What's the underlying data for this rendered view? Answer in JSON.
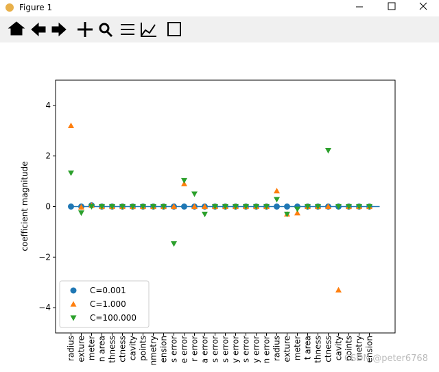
{
  "window": {
    "title": "Figure 1",
    "watermark": "CSDN @peter6768"
  },
  "chart_data": {
    "type": "scatter",
    "ylabel": "coefficient magnitude",
    "categories": [
      "radius",
      "exture",
      "meter",
      "n area",
      "thness",
      "ctness",
      "cavity",
      "points",
      "nmetry",
      "ension",
      "s error",
      "e error",
      "r error",
      "a error",
      "s error",
      "s error",
      "y error",
      "s error",
      "y error",
      "n error",
      "radius",
      "exture",
      "meter",
      "t area",
      "thness",
      "ctness",
      "cavity",
      "points",
      "metry",
      "ension"
    ],
    "xlim": [
      -1.5,
      31.5
    ],
    "ylim": [
      -5,
      5
    ],
    "yticks": [
      {
        "value": -4,
        "label": "−4"
      },
      {
        "value": -2,
        "label": "−2"
      },
      0,
      2,
      4
    ],
    "hline": {
      "y": 0,
      "x": [
        0,
        30
      ],
      "color": "#1f77b4"
    },
    "legend": "lower left",
    "series": [
      {
        "name": "C=0.001",
        "color": "#1f77b4",
        "marker": "o",
        "values": [
          0,
          0,
          0.05,
          0,
          0,
          0,
          0,
          0,
          0,
          0,
          0,
          0,
          0,
          0,
          0,
          0,
          0,
          0,
          0,
          0,
          0,
          0,
          0,
          0,
          0,
          0,
          0,
          0,
          0,
          0
        ]
      },
      {
        "name": "C=1.000",
        "color": "#ff7f0e",
        "marker": "^",
        "values": [
          3.2,
          -0.02,
          0.05,
          0,
          0,
          0,
          0,
          0,
          0,
          0,
          0,
          0.9,
          0,
          0,
          0,
          0,
          0,
          0,
          0,
          0,
          0.62,
          -0.3,
          -0.25,
          0,
          0,
          0,
          -3.3,
          0,
          0,
          0
        ]
      },
      {
        "name": "C=100.000",
        "color": "#2ca02c",
        "marker": "v",
        "values": [
          1.33,
          -0.25,
          0,
          0,
          0,
          0,
          0,
          0,
          0,
          0,
          -1.47,
          1.03,
          0.5,
          -0.3,
          0,
          0,
          0,
          0,
          0,
          0,
          0.28,
          -0.3,
          -0.1,
          0,
          0,
          2.22,
          0,
          0,
          0,
          0
        ]
      }
    ]
  }
}
